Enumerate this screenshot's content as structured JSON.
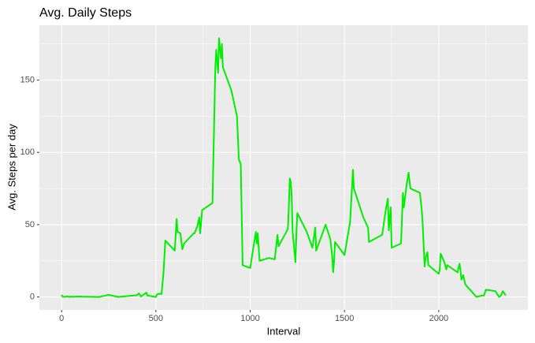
{
  "chart_data": {
    "type": "line",
    "title": "Avg. Daily Steps",
    "x_label": "Interval",
    "y_label": "Avg. Steps per day",
    "x": [
      0,
      5,
      10,
      20,
      30,
      40,
      50,
      55,
      100,
      110,
      200,
      250,
      300,
      400,
      410,
      420,
      450,
      455,
      500,
      505,
      515,
      530,
      540,
      550,
      600,
      610,
      615,
      630,
      640,
      650,
      700,
      705,
      720,
      730,
      735,
      740,
      745,
      800,
      815,
      820,
      830,
      835,
      845,
      850,
      855,
      900,
      930,
      940,
      950,
      960,
      1000,
      1030,
      1035,
      1040,
      1050,
      1100,
      1130,
      1145,
      1150,
      1200,
      1205,
      1210,
      1215,
      1220,
      1225,
      1240,
      1245,
      1250,
      1300,
      1330,
      1345,
      1350,
      1400,
      1425,
      1435,
      1440,
      1445,
      1450,
      1500,
      1530,
      1545,
      1550,
      1600,
      1625,
      1630,
      1700,
      1720,
      1730,
      1735,
      1745,
      1750,
      1800,
      1810,
      1815,
      1830,
      1840,
      1845,
      1850,
      1900,
      1910,
      1915,
      1925,
      1930,
      1940,
      1945,
      2000,
      2005,
      2010,
      2030,
      2040,
      2045,
      2100,
      2110,
      2115,
      2120,
      2130,
      2140,
      2145,
      2200,
      2230,
      2240,
      2250,
      2300,
      2320,
      2330,
      2340,
      2345,
      2355
    ],
    "series": [
      {
        "name": "steps",
        "color": "#00ee00",
        "values": [
          1.5,
          0.3,
          0.1,
          0.1,
          0.5,
          0,
          0.3,
          0.1,
          0.3,
          0.2,
          0,
          1.5,
          0,
          1.2,
          2.5,
          0.3,
          3,
          1,
          0,
          1.6,
          2.2,
          2.1,
          16,
          39,
          32,
          54,
          45,
          44,
          33,
          37,
          44,
          44,
          49,
          55,
          44,
          52,
          60,
          65,
          158,
          171,
          155,
          179,
          165,
          175,
          159,
          143,
          125,
          95,
          92,
          22,
          20,
          45,
          37,
          44,
          25,
          27,
          26,
          43,
          35,
          47,
          63,
          82,
          80,
          70,
          45,
          24,
          44,
          58,
          45,
          34,
          48,
          32,
          50,
          40,
          28,
          17,
          25,
          38,
          29,
          52,
          88,
          75,
          55,
          48,
          38,
          43,
          61,
          68,
          46,
          62,
          34,
          37,
          72,
          62,
          78,
          86,
          80,
          75,
          72,
          60,
          50,
          21,
          27,
          31,
          22,
          16,
          19,
          30,
          24,
          19,
          22,
          17,
          23,
          19,
          12,
          15,
          9,
          8,
          0,
          1,
          1,
          5,
          4,
          0,
          1,
          4,
          3,
          1
        ]
      }
    ],
    "xlim": [
      -117.75,
      2472.75
    ],
    "xticks": [
      0,
      500,
      1000,
      1500,
      2000
    ],
    "ylim": [
      -8.95,
      187.95
    ],
    "yticks": [
      0,
      50,
      100,
      150
    ],
    "grid": true
  }
}
